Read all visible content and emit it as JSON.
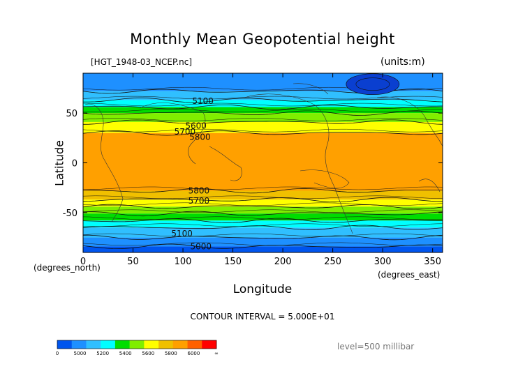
{
  "chart_data": {
    "type": "heatmap",
    "title": "Monthly Mean Geopotential height",
    "file_label": "[HGT_1948-03_NCEP.nc]",
    "units_label": "(units:m)",
    "xlabel": "Longitude",
    "ylabel": "Latitude",
    "x_unit_label": "(degrees_east)",
    "y_unit_label": "(degrees_north)",
    "xlim": [
      0,
      360
    ],
    "ylim": [
      -90,
      90
    ],
    "x_ticks": [
      0,
      50,
      100,
      150,
      200,
      250,
      300,
      350
    ],
    "y_ticks": [
      -50,
      0,
      50
    ],
    "contour_interval_text": "CONTOUR INTERVAL = 5.000E+01",
    "level_text": "level=500 millibar",
    "bands": [
      {
        "lat": [
          72,
          90
        ],
        "value": 5100
      },
      {
        "lat": [
          63,
          72
        ],
        "value": 5250
      },
      {
        "lat": [
          56,
          63
        ],
        "value": 5350
      },
      {
        "lat": [
          50,
          56
        ],
        "value": 5450
      },
      {
        "lat": [
          41,
          50
        ],
        "value": 5550
      },
      {
        "lat": [
          30,
          41
        ],
        "value": 5650
      },
      {
        "lat": [
          -28,
          30
        ],
        "value": 5850
      },
      {
        "lat": [
          -37,
          -28
        ],
        "value": 5750
      },
      {
        "lat": [
          -44,
          -37
        ],
        "value": 5650
      },
      {
        "lat": [
          -51,
          -44
        ],
        "value": 5550
      },
      {
        "lat": [
          -58,
          -51
        ],
        "value": 5450
      },
      {
        "lat": [
          -65,
          -58
        ],
        "value": 5350
      },
      {
        "lat": [
          -75,
          -65
        ],
        "value": 5250
      },
      {
        "lat": [
          -84,
          -75
        ],
        "value": 5100
      },
      {
        "lat": [
          -90,
          -84
        ],
        "value": 4950
      }
    ],
    "contour_labels": [
      {
        "text": "5100",
        "lon": 120,
        "lat": 62
      },
      {
        "text": "5800",
        "lon": 117,
        "lat": 26
      },
      {
        "text": "5700",
        "lon": 102,
        "lat": 31
      },
      {
        "text": "5600",
        "lon": 113,
        "lat": 37
      },
      {
        "text": "5800",
        "lon": 116,
        "lat": -28
      },
      {
        "text": "5700",
        "lon": 116,
        "lat": -38
      },
      {
        "text": "5100",
        "lon": 99,
        "lat": -71
      },
      {
        "text": "5000",
        "lon": 118,
        "lat": -84
      }
    ],
    "colorbar": {
      "tick_labels": [
        "0",
        "5000",
        "5200",
        "5400",
        "5600",
        "5800",
        "6000",
        "∞"
      ],
      "colors": [
        "#0055ee",
        "#1e90ff",
        "#30bfff",
        "#00ffff",
        "#00dd00",
        "#80ee00",
        "#ffff00",
        "#f0c000",
        "#ffa000",
        "#ff6000",
        "#ff0000"
      ]
    },
    "color_scale": [
      {
        "min": 0,
        "max": 5000,
        "color": "#0055ee"
      },
      {
        "min": 5000,
        "max": 5200,
        "color": "#1e90ff"
      },
      {
        "min": 5200,
        "max": 5300,
        "color": "#30bfff"
      },
      {
        "min": 5300,
        "max": 5400,
        "color": "#00ffff"
      },
      {
        "min": 5400,
        "max": 5500,
        "color": "#00dd00"
      },
      {
        "min": 5500,
        "max": 5600,
        "color": "#80ee00"
      },
      {
        "min": 5600,
        "max": 5700,
        "color": "#ffff00"
      },
      {
        "min": 5700,
        "max": 5800,
        "color": "#f0c000"
      },
      {
        "min": 5800,
        "max": 6000,
        "color": "#ffa000"
      }
    ]
  }
}
